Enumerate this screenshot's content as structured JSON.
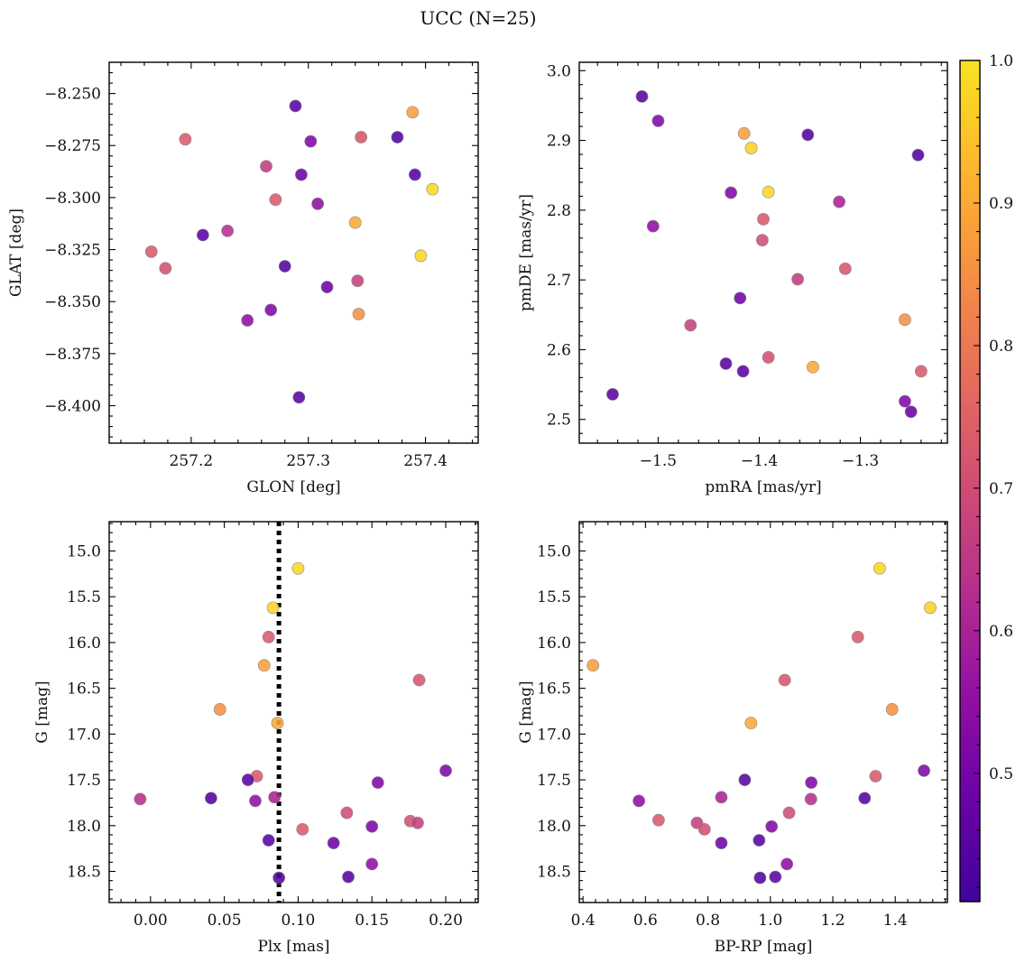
{
  "figure": {
    "title": "UCC (N=25)"
  },
  "colorbar": {
    "range": [
      0.41,
      1.0
    ],
    "ticks": [
      0.5,
      0.6,
      0.7,
      0.8,
      0.9,
      1.0
    ],
    "tick_labels": [
      "0.5",
      "0.6",
      "0.7",
      "0.8",
      "0.9",
      "1.0"
    ],
    "colormap": "plasma",
    "colormap_window": [
      0.1,
      0.95
    ]
  },
  "chart_data": [
    {
      "type": "scatter",
      "panel": "top-left",
      "xlabel": "GLON [deg]",
      "ylabel": "GLAT [deg]",
      "xlim": [
        257.13,
        257.445
      ],
      "ylim": [
        -8.418,
        -8.235
      ],
      "xticks": [
        257.2,
        257.3,
        257.4
      ],
      "xtick_labels": [
        "257.2",
        "257.3",
        "257.4"
      ],
      "yticks": [
        -8.25,
        -8.275,
        -8.3,
        -8.325,
        -8.35,
        -8.375,
        -8.4
      ],
      "ytick_labels": [
        "−8.250",
        "−8.275",
        "−8.300",
        "−8.325",
        "−8.350",
        "−8.375",
        "−8.400"
      ],
      "points": [
        {
          "x": 257.289,
          "y": -8.256,
          "c": 0.45
        },
        {
          "x": 257.389,
          "y": -8.259,
          "c": 0.88
        },
        {
          "x": 257.195,
          "y": -8.272,
          "c": 0.73
        },
        {
          "x": 257.345,
          "y": -8.271,
          "c": 0.72
        },
        {
          "x": 257.376,
          "y": -8.271,
          "c": 0.44
        },
        {
          "x": 257.302,
          "y": -8.273,
          "c": 0.52
        },
        {
          "x": 257.264,
          "y": -8.285,
          "c": 0.66
        },
        {
          "x": 257.294,
          "y": -8.289,
          "c": 0.48
        },
        {
          "x": 257.391,
          "y": -8.289,
          "c": 0.44
        },
        {
          "x": 257.406,
          "y": -8.296,
          "c": 0.98
        },
        {
          "x": 257.272,
          "y": -8.301,
          "c": 0.73
        },
        {
          "x": 257.308,
          "y": -8.303,
          "c": 0.55
        },
        {
          "x": 257.34,
          "y": -8.312,
          "c": 0.9
        },
        {
          "x": 257.231,
          "y": -8.316,
          "c": 0.63
        },
        {
          "x": 257.21,
          "y": -8.318,
          "c": 0.45
        },
        {
          "x": 257.166,
          "y": -8.326,
          "c": 0.73
        },
        {
          "x": 257.396,
          "y": -8.328,
          "c": 0.98
        },
        {
          "x": 257.28,
          "y": -8.333,
          "c": 0.44
        },
        {
          "x": 257.178,
          "y": -8.334,
          "c": 0.71
        },
        {
          "x": 257.342,
          "y": -8.34,
          "c": 0.67
        },
        {
          "x": 257.316,
          "y": -8.343,
          "c": 0.49
        },
        {
          "x": 257.268,
          "y": -8.354,
          "c": 0.52
        },
        {
          "x": 257.343,
          "y": -8.356,
          "c": 0.85
        },
        {
          "x": 257.248,
          "y": -8.359,
          "c": 0.55
        },
        {
          "x": 257.292,
          "y": -8.396,
          "c": 0.45
        }
      ]
    },
    {
      "type": "scatter",
      "panel": "top-right",
      "xlabel": "pmRA [mas/yr]",
      "ylabel": "pmDE [mas/yr]",
      "xlim": [
        -1.578,
        -1.214
      ],
      "ylim": [
        2.466,
        3.012
      ],
      "xticks": [
        -1.5,
        -1.4,
        -1.3
      ],
      "xtick_labels": [
        "−1.5",
        "−1.4",
        "−1.3"
      ],
      "yticks": [
        2.5,
        2.6,
        2.7,
        2.8,
        2.9,
        3.0
      ],
      "ytick_labels": [
        "2.5",
        "2.6",
        "2.7",
        "2.8",
        "2.9",
        "3.0"
      ],
      "points": [
        {
          "x": -1.516,
          "y": 2.963,
          "c": 0.45
        },
        {
          "x": -1.5,
          "y": 2.928,
          "c": 0.52
        },
        {
          "x": -1.415,
          "y": 2.91,
          "c": 0.88
        },
        {
          "x": -1.352,
          "y": 2.908,
          "c": 0.44
        },
        {
          "x": -1.408,
          "y": 2.889,
          "c": 0.97
        },
        {
          "x": -1.243,
          "y": 2.879,
          "c": 0.44
        },
        {
          "x": -1.391,
          "y": 2.826,
          "c": 0.98
        },
        {
          "x": -1.428,
          "y": 2.825,
          "c": 0.52
        },
        {
          "x": -1.321,
          "y": 2.812,
          "c": 0.6
        },
        {
          "x": -1.396,
          "y": 2.787,
          "c": 0.73
        },
        {
          "x": -1.505,
          "y": 2.777,
          "c": 0.55
        },
        {
          "x": -1.397,
          "y": 2.757,
          "c": 0.7
        },
        {
          "x": -1.315,
          "y": 2.716,
          "c": 0.72
        },
        {
          "x": -1.362,
          "y": 2.701,
          "c": 0.66
        },
        {
          "x": -1.419,
          "y": 2.674,
          "c": 0.49
        },
        {
          "x": -1.468,
          "y": 2.635,
          "c": 0.67
        },
        {
          "x": -1.256,
          "y": 2.643,
          "c": 0.85
        },
        {
          "x": -1.391,
          "y": 2.589,
          "c": 0.71
        },
        {
          "x": -1.433,
          "y": 2.58,
          "c": 0.45
        },
        {
          "x": -1.347,
          "y": 2.575,
          "c": 0.9
        },
        {
          "x": -1.416,
          "y": 2.569,
          "c": 0.45
        },
        {
          "x": -1.24,
          "y": 2.569,
          "c": 0.73
        },
        {
          "x": -1.545,
          "y": 2.536,
          "c": 0.45
        },
        {
          "x": -1.256,
          "y": 2.526,
          "c": 0.52
        },
        {
          "x": -1.25,
          "y": 2.511,
          "c": 0.48
        }
      ]
    },
    {
      "type": "scatter",
      "panel": "bottom-left",
      "xlabel": "Plx [mas]",
      "ylabel": "G [mag]",
      "xlim": [
        -0.028,
        0.222
      ],
      "ylim": [
        18.84,
        14.68
      ],
      "vline": 0.087,
      "xticks": [
        0.0,
        0.05,
        0.1,
        0.15,
        0.2
      ],
      "xtick_labels": [
        "0.00",
        "0.05",
        "0.10",
        "0.15",
        "0.20"
      ],
      "yticks": [
        15.0,
        15.5,
        16.0,
        16.5,
        17.0,
        17.5,
        18.0,
        18.5
      ],
      "ytick_labels": [
        "15.0",
        "15.5",
        "16.0",
        "16.5",
        "17.0",
        "17.5",
        "18.0",
        "18.5"
      ],
      "points": [
        {
          "x": 0.1,
          "y": 15.19,
          "c": 0.98
        },
        {
          "x": 0.083,
          "y": 15.62,
          "c": 0.97
        },
        {
          "x": 0.08,
          "y": 15.94,
          "c": 0.73
        },
        {
          "x": 0.077,
          "y": 16.25,
          "c": 0.88
        },
        {
          "x": 0.182,
          "y": 16.41,
          "c": 0.72
        },
        {
          "x": 0.047,
          "y": 16.73,
          "c": 0.85
        },
        {
          "x": 0.086,
          "y": 16.88,
          "c": 0.9
        },
        {
          "x": 0.2,
          "y": 17.4,
          "c": 0.52
        },
        {
          "x": 0.072,
          "y": 17.46,
          "c": 0.73
        },
        {
          "x": 0.066,
          "y": 17.5,
          "c": 0.45
        },
        {
          "x": 0.154,
          "y": 17.53,
          "c": 0.52
        },
        {
          "x": -0.007,
          "y": 17.71,
          "c": 0.63
        },
        {
          "x": 0.041,
          "y": 17.7,
          "c": 0.44
        },
        {
          "x": 0.084,
          "y": 17.69,
          "c": 0.6
        },
        {
          "x": 0.071,
          "y": 17.73,
          "c": 0.55
        },
        {
          "x": 0.133,
          "y": 17.86,
          "c": 0.7
        },
        {
          "x": 0.176,
          "y": 17.95,
          "c": 0.71
        },
        {
          "x": 0.181,
          "y": 17.97,
          "c": 0.67
        },
        {
          "x": 0.15,
          "y": 18.01,
          "c": 0.52
        },
        {
          "x": 0.103,
          "y": 18.04,
          "c": 0.73
        },
        {
          "x": 0.08,
          "y": 18.16,
          "c": 0.45
        },
        {
          "x": 0.124,
          "y": 18.19,
          "c": 0.49
        },
        {
          "x": 0.15,
          "y": 18.42,
          "c": 0.55
        },
        {
          "x": 0.087,
          "y": 18.57,
          "c": 0.44
        },
        {
          "x": 0.134,
          "y": 18.56,
          "c": 0.45
        }
      ]
    },
    {
      "type": "scatter",
      "panel": "bottom-right",
      "xlabel": "BP-RP [mag]",
      "ylabel": "G [mag]",
      "xlim": [
        0.388,
        1.567
      ],
      "ylim": [
        18.84,
        14.68
      ],
      "xticks": [
        0.4,
        0.6,
        0.8,
        1.0,
        1.2,
        1.4
      ],
      "xtick_labels": [
        "0.4",
        "0.6",
        "0.8",
        "1.0",
        "1.2",
        "1.4"
      ],
      "yticks": [
        15.0,
        15.5,
        16.0,
        16.5,
        17.0,
        17.5,
        18.0,
        18.5
      ],
      "ytick_labels": [
        "15.0",
        "15.5",
        "16.0",
        "16.5",
        "17.0",
        "17.5",
        "18.0",
        "18.5"
      ],
      "points": [
        {
          "x": 1.35,
          "y": 15.19,
          "c": 0.98
        },
        {
          "x": 1.512,
          "y": 15.62,
          "c": 0.97
        },
        {
          "x": 1.28,
          "y": 15.94,
          "c": 0.73
        },
        {
          "x": 0.432,
          "y": 16.25,
          "c": 0.88
        },
        {
          "x": 1.046,
          "y": 16.41,
          "c": 0.72
        },
        {
          "x": 1.39,
          "y": 16.73,
          "c": 0.85
        },
        {
          "x": 0.938,
          "y": 16.88,
          "c": 0.9
        },
        {
          "x": 1.492,
          "y": 17.4,
          "c": 0.52
        },
        {
          "x": 1.337,
          "y": 17.46,
          "c": 0.73
        },
        {
          "x": 0.918,
          "y": 17.5,
          "c": 0.45
        },
        {
          "x": 1.131,
          "y": 17.53,
          "c": 0.52
        },
        {
          "x": 0.579,
          "y": 17.73,
          "c": 0.55
        },
        {
          "x": 0.843,
          "y": 17.69,
          "c": 0.6
        },
        {
          "x": 1.13,
          "y": 17.71,
          "c": 0.63
        },
        {
          "x": 1.302,
          "y": 17.7,
          "c": 0.44
        },
        {
          "x": 0.642,
          "y": 17.94,
          "c": 0.73
        },
        {
          "x": 0.765,
          "y": 17.97,
          "c": 0.67
        },
        {
          "x": 0.789,
          "y": 18.04,
          "c": 0.71
        },
        {
          "x": 1.06,
          "y": 17.86,
          "c": 0.7
        },
        {
          "x": 1.004,
          "y": 18.01,
          "c": 0.52
        },
        {
          "x": 0.843,
          "y": 18.19,
          "c": 0.49
        },
        {
          "x": 0.964,
          "y": 18.16,
          "c": 0.45
        },
        {
          "x": 1.053,
          "y": 18.42,
          "c": 0.55
        },
        {
          "x": 0.967,
          "y": 18.57,
          "c": 0.44
        },
        {
          "x": 1.016,
          "y": 18.56,
          "c": 0.45
        }
      ]
    }
  ]
}
